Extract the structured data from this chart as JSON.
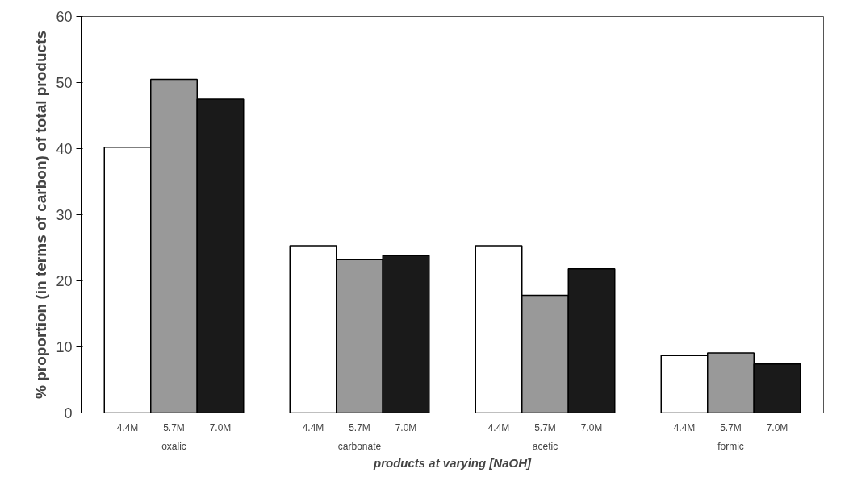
{
  "chart_data": {
    "type": "bar",
    "xlabel": "products at varying [NaOH]",
    "ylabel": "% proportion (in terms of carbon) of total products",
    "categories": [
      "oxalic",
      "carbonate",
      "acetic",
      "formic"
    ],
    "series": [
      {
        "name": "4.4M",
        "color": "#ffffff",
        "values": [
          40.2,
          25.3,
          25.3,
          8.7
        ]
      },
      {
        "name": "5.7M",
        "color": "#999999",
        "values": [
          50.5,
          23.2,
          17.8,
          9.1
        ]
      },
      {
        "name": "7.0M",
        "color": "#1a1a1a",
        "values": [
          47.5,
          23.8,
          21.8,
          7.4
        ]
      }
    ],
    "ylim": [
      0,
      60
    ],
    "yticks": [
      0,
      10,
      20,
      30,
      40,
      50,
      60
    ],
    "grid": false
  }
}
